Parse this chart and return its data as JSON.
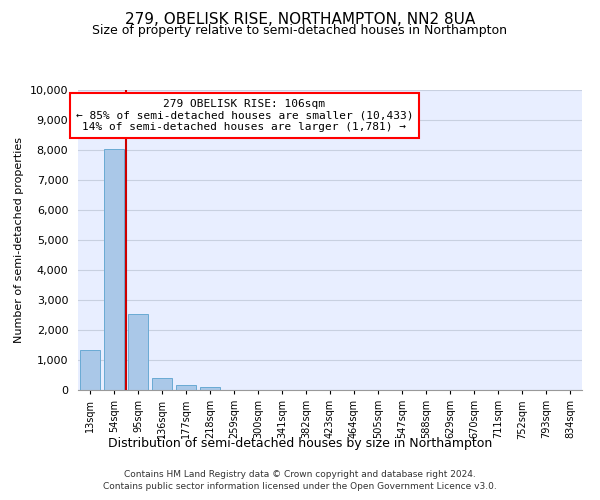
{
  "title": "279, OBELISK RISE, NORTHAMPTON, NN2 8UA",
  "subtitle": "Size of property relative to semi-detached houses in Northampton",
  "xlabel": "Distribution of semi-detached houses by size in Northampton",
  "ylabel": "Number of semi-detached properties",
  "bar_labels": [
    "13sqm",
    "54sqm",
    "95sqm",
    "136sqm",
    "177sqm",
    "218sqm",
    "259sqm",
    "300sqm",
    "341sqm",
    "382sqm",
    "423sqm",
    "464sqm",
    "505sqm",
    "547sqm",
    "588sqm",
    "629sqm",
    "670sqm",
    "711sqm",
    "752sqm",
    "793sqm",
    "834sqm"
  ],
  "bar_values": [
    1320,
    8020,
    2530,
    400,
    175,
    105,
    0,
    0,
    0,
    0,
    0,
    0,
    0,
    0,
    0,
    0,
    0,
    0,
    0,
    0,
    0
  ],
  "bar_color": "#aac8e8",
  "bar_edge_color": "#6aaad4",
  "ylim": [
    0,
    10000
  ],
  "yticks": [
    0,
    1000,
    2000,
    3000,
    4000,
    5000,
    6000,
    7000,
    8000,
    9000,
    10000
  ],
  "vline_x": 1.5,
  "annotation_line1": "279 OBELISK RISE: 106sqm",
  "annotation_line2": "← 85% of semi-detached houses are smaller (10,433)",
  "annotation_line3": "14% of semi-detached houses are larger (1,781) →",
  "footer_line1": "Contains HM Land Registry data © Crown copyright and database right 2024.",
  "footer_line2": "Contains public sector information licensed under the Open Government Licence v3.0.",
  "bg_color": "#e8eeff",
  "grid_color": "#c8d0e0",
  "vline_color": "#cc0000",
  "title_fontsize": 11,
  "subtitle_fontsize": 9
}
